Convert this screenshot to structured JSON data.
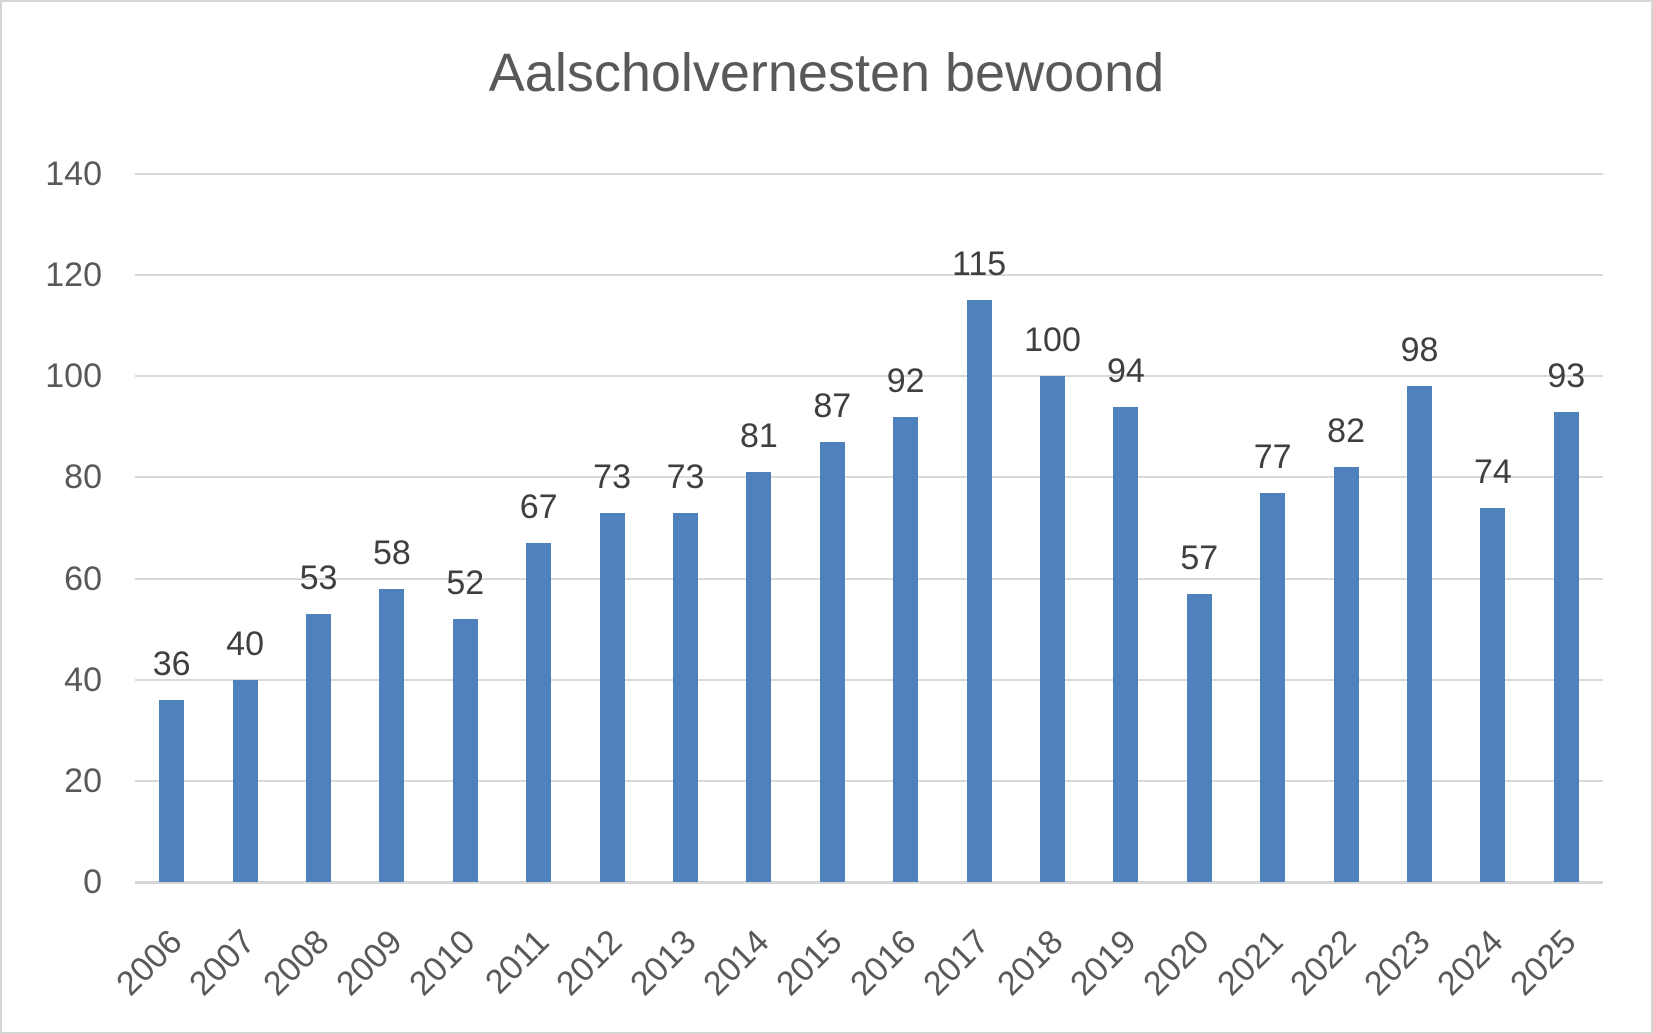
{
  "chart_data": {
    "type": "bar",
    "title": "Aalscholvernesten bewoond",
    "categories": [
      "2006",
      "2007",
      "2008",
      "2009",
      "2010",
      "2011",
      "2012",
      "2013",
      "2014",
      "2015",
      "2016",
      "2017",
      "2018",
      "2019",
      "2020",
      "2021",
      "2022",
      "2023",
      "2024",
      "2025"
    ],
    "values": [
      36,
      40,
      53,
      58,
      52,
      67,
      73,
      73,
      81,
      87,
      92,
      115,
      100,
      94,
      57,
      77,
      82,
      98,
      74,
      93
    ],
    "xlabel": "",
    "ylabel": "",
    "ylim": [
      0,
      140
    ],
    "yticks": [
      0,
      20,
      40,
      60,
      80,
      100,
      120,
      140
    ],
    "grid": true,
    "legend_position": "none",
    "data_labels": "outside-end",
    "colors": {
      "bar": "#4F81BD",
      "gridline": "#D9D9D9",
      "axis_line": "#D6D6D6",
      "title_text": "#595959",
      "axis_label_text": "#595959",
      "data_label_text": "#3F3F3F",
      "background": "#FFFFFF",
      "frame_border": "#D6D6D6"
    }
  }
}
